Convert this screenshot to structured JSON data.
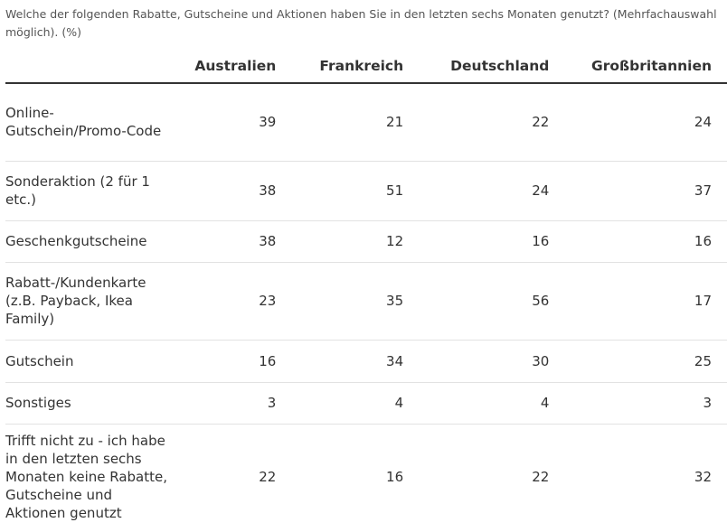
{
  "caption": "Welche der folgenden Rabatte, Gutscheine und Aktionen haben Sie in den letzten sechs Monaten genutzt? (Mehrfachauswahl möglich). (%)",
  "chart_data": {
    "type": "table",
    "columns": [
      "Australien",
      "Frankreich",
      "Deutschland",
      "Großbritannien"
    ],
    "rows": [
      {
        "label": "Online-Gutschein/Promo-Code",
        "values": [
          39,
          21,
          22,
          24
        ]
      },
      {
        "label": "Sonderaktion (2 für 1 etc.)",
        "values": [
          38,
          51,
          24,
          37
        ]
      },
      {
        "label": "Geschenkgutscheine",
        "values": [
          38,
          12,
          16,
          16
        ]
      },
      {
        "label": "Rabatt-/Kundenkarte (z.B. Payback, Ikea Family)",
        "values": [
          23,
          35,
          56,
          17
        ]
      },
      {
        "label": "Gutschein",
        "values": [
          16,
          34,
          30,
          25
        ]
      },
      {
        "label": "Sonstiges",
        "values": [
          3,
          4,
          4,
          3
        ]
      },
      {
        "label": "Trifft nicht zu - ich habe in den letzten sechs Monaten keine Rabatte, Gutscheine und Aktionen genutzt",
        "values": [
          22,
          16,
          22,
          32
        ]
      }
    ]
  }
}
